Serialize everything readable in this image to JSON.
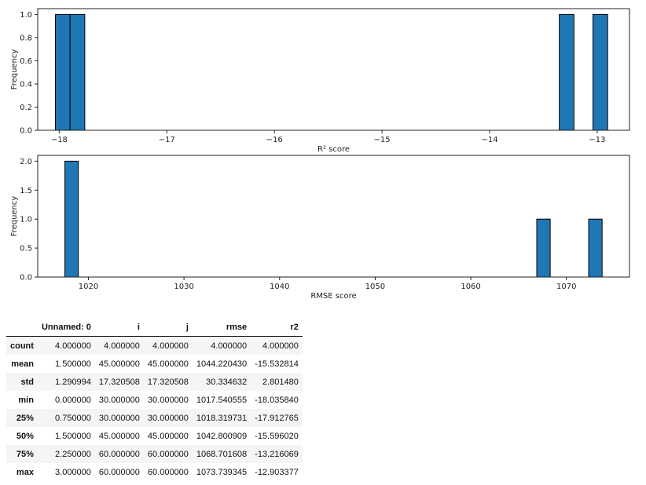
{
  "chart_data": [
    {
      "type": "bar",
      "subtype": "histogram",
      "xlabel": "R² score",
      "ylabel": "Frequency",
      "xlim": [
        -18.2,
        -12.7
      ],
      "ylim": [
        0,
        1.05
      ],
      "xticks": [
        -18,
        -17,
        -16,
        -15,
        -14,
        -13
      ],
      "yticks": [
        0.0,
        0.2,
        0.4,
        0.6,
        0.8,
        1.0
      ],
      "xtick_labels": [
        "−18",
        "−17",
        "−16",
        "−15",
        "−14",
        "−13"
      ],
      "ytick_labels": [
        "0.0",
        "0.2",
        "0.4",
        "0.6",
        "0.8",
        "1.0"
      ],
      "bin_width": 0.1366,
      "bins": [
        {
          "start": -18.0358,
          "count": 1
        },
        {
          "start": -17.8993,
          "count": 1
        },
        {
          "start": -13.3526,
          "count": 1
        },
        {
          "start": -13.0397,
          "count": 1
        }
      ],
      "bar_color": "#1f77b4",
      "grid": false
    },
    {
      "type": "bar",
      "subtype": "histogram",
      "xlabel": "RMSE score",
      "ylabel": "Frequency",
      "xlim": [
        1014.7,
        1076.6
      ],
      "ylim": [
        0,
        2.1
      ],
      "xticks": [
        1020,
        1030,
        1040,
        1050,
        1060,
        1070
      ],
      "yticks": [
        0.0,
        0.5,
        1.0,
        1.5,
        2.0
      ],
      "xtick_labels": [
        "1020",
        "1030",
        "1040",
        "1050",
        "1060",
        "1070"
      ],
      "ytick_labels": [
        "0.0",
        "0.5",
        "1.0",
        "1.5",
        "2.0"
      ],
      "bin_width": 1.4066,
      "bins": [
        {
          "start": 1017.5406,
          "count": 2
        },
        {
          "start": 1066.9,
          "count": 1
        },
        {
          "start": 1072.33,
          "count": 1
        }
      ],
      "bar_color": "#1f77b4",
      "grid": false
    },
    {
      "type": "table",
      "columns": [
        "",
        "Unnamed: 0",
        "i",
        "j",
        "rmse",
        "r2"
      ],
      "rows": [
        [
          "count",
          "4.000000",
          "4.000000",
          "4.000000",
          "4.000000",
          "4.000000"
        ],
        [
          "mean",
          "1.500000",
          "45.000000",
          "45.000000",
          "1044.220430",
          "-15.532814"
        ],
        [
          "std",
          "1.290994",
          "17.320508",
          "17.320508",
          "30.334632",
          "2.801480"
        ],
        [
          "min",
          "0.000000",
          "30.000000",
          "30.000000",
          "1017.540555",
          "-18.035840"
        ],
        [
          "25%",
          "0.750000",
          "30.000000",
          "30.000000",
          "1018.319731",
          "-17.912765"
        ],
        [
          "50%",
          "1.500000",
          "45.000000",
          "45.000000",
          "1042.800909",
          "-15.596020"
        ],
        [
          "75%",
          "2.250000",
          "60.000000",
          "60.000000",
          "1068.701608",
          "-13.216069"
        ],
        [
          "max",
          "3.000000",
          "60.000000",
          "60.000000",
          "1073.739345",
          "-12.903377"
        ]
      ]
    }
  ]
}
